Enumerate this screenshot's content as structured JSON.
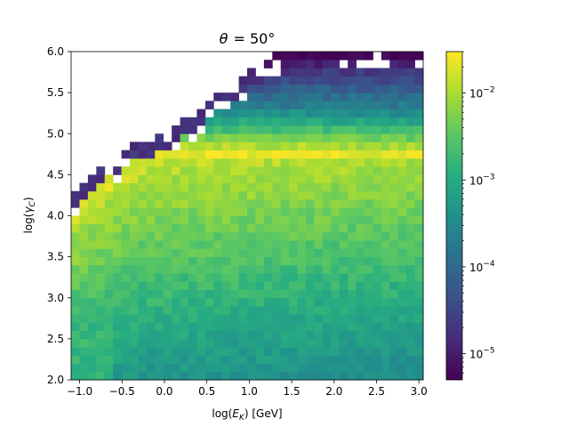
{
  "chart_data": {
    "type": "heatmap",
    "title_prefix": "θ",
    "title_value": "= 50°",
    "xlabel_prefix": "log(",
    "xlabel_var": "E",
    "xlabel_sub": "K",
    "xlabel_suffix": ") [GeV]",
    "ylabel_prefix": "log(",
    "ylabel_var": "γ",
    "ylabel_sub": "C",
    "ylabel_suffix": ")",
    "xlim": [
      -1.1,
      3.05
    ],
    "ylim": [
      2.0,
      6.0
    ],
    "x_ticks": [
      -1.0,
      -0.5,
      0.0,
      0.5,
      1.0,
      1.5,
      2.0,
      2.5,
      3.0
    ],
    "x_tick_labels": [
      "−1.0",
      "−0.5",
      "0.0",
      "0.5",
      "1.0",
      "1.5",
      "2.0",
      "2.5",
      "3.0"
    ],
    "y_ticks": [
      2.0,
      2.5,
      3.0,
      3.5,
      4.0,
      4.5,
      5.0,
      5.5,
      6.0
    ],
    "y_tick_labels": [
      "2.0",
      "2.5",
      "3.0",
      "3.5",
      "4.0",
      "4.5",
      "5.0",
      "5.5",
      "6.0"
    ],
    "colorbar": {
      "scale": "log",
      "colormap": "viridis",
      "range": [
        5e-06,
        0.03
      ],
      "ticks": [
        1e-05,
        0.0001,
        0.001,
        0.01
      ],
      "tick_bases": [
        "10",
        "10",
        "10",
        "10"
      ],
      "tick_exponents": [
        "−5",
        "−4",
        "−3",
        "−2"
      ]
    },
    "grid": false,
    "x_bins": {
      "start": -1.1,
      "end": 3.05,
      "count": 42
    },
    "y_bins": {
      "start": 2.0,
      "end": 6.0,
      "count": 40
    },
    "ridge_logE": 0.3,
    "peak_band_logGamma": [
      4.7,
      4.8
    ],
    "peak_value": 0.025,
    "upper_envelope": [
      [
        -1.1,
        4.25
      ],
      [
        -0.9,
        4.4
      ],
      [
        -0.6,
        4.65
      ],
      [
        -0.3,
        4.85
      ],
      [
        0.0,
        4.95
      ],
      [
        0.3,
        5.15
      ],
      [
        0.6,
        5.4
      ],
      [
        0.9,
        5.6
      ],
      [
        1.2,
        5.85
      ],
      [
        1.5,
        6.0
      ]
    ]
  }
}
